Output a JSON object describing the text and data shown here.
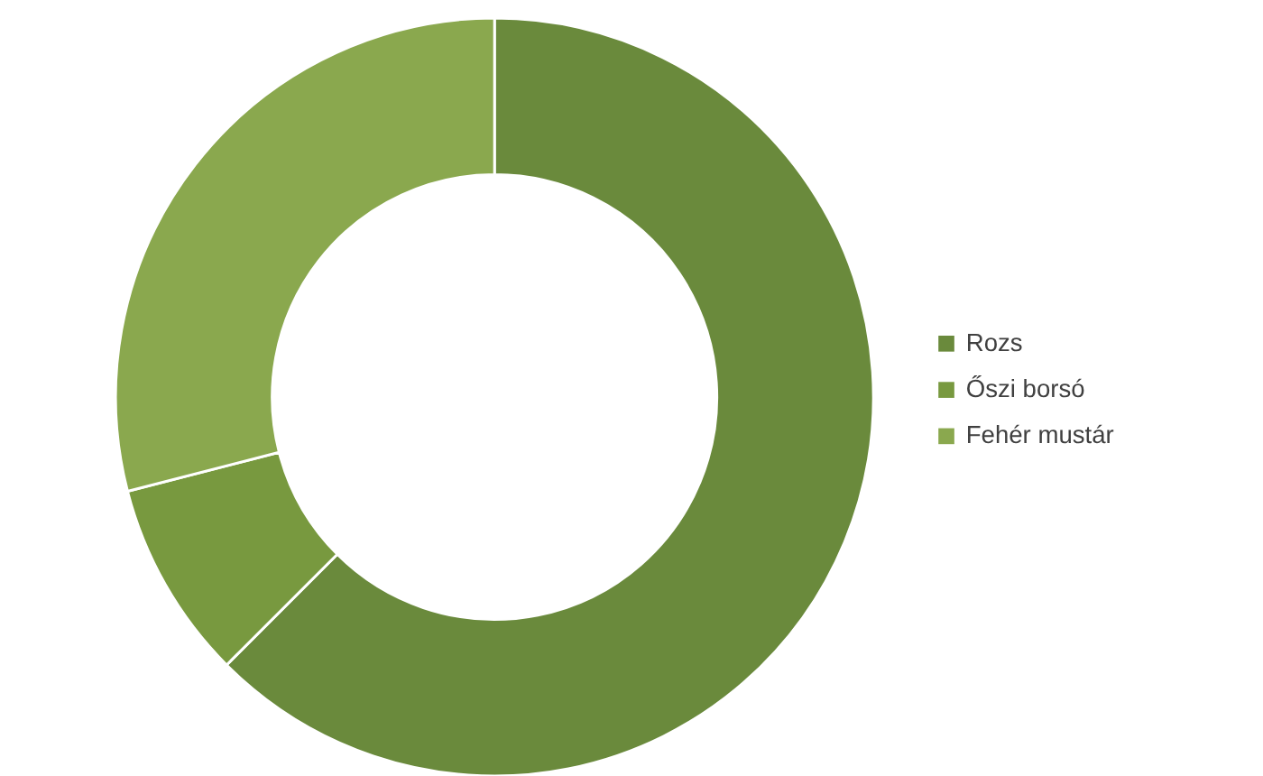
{
  "chart_data": {
    "type": "donut",
    "categories": [
      "Rozs",
      "Őszi borsó",
      "Fehér mustár"
    ],
    "values": [
      62.5,
      8.5,
      29
    ],
    "colors": [
      "#6a8a3c",
      "#78993f",
      "#8aa84e"
    ],
    "legend": "right"
  }
}
